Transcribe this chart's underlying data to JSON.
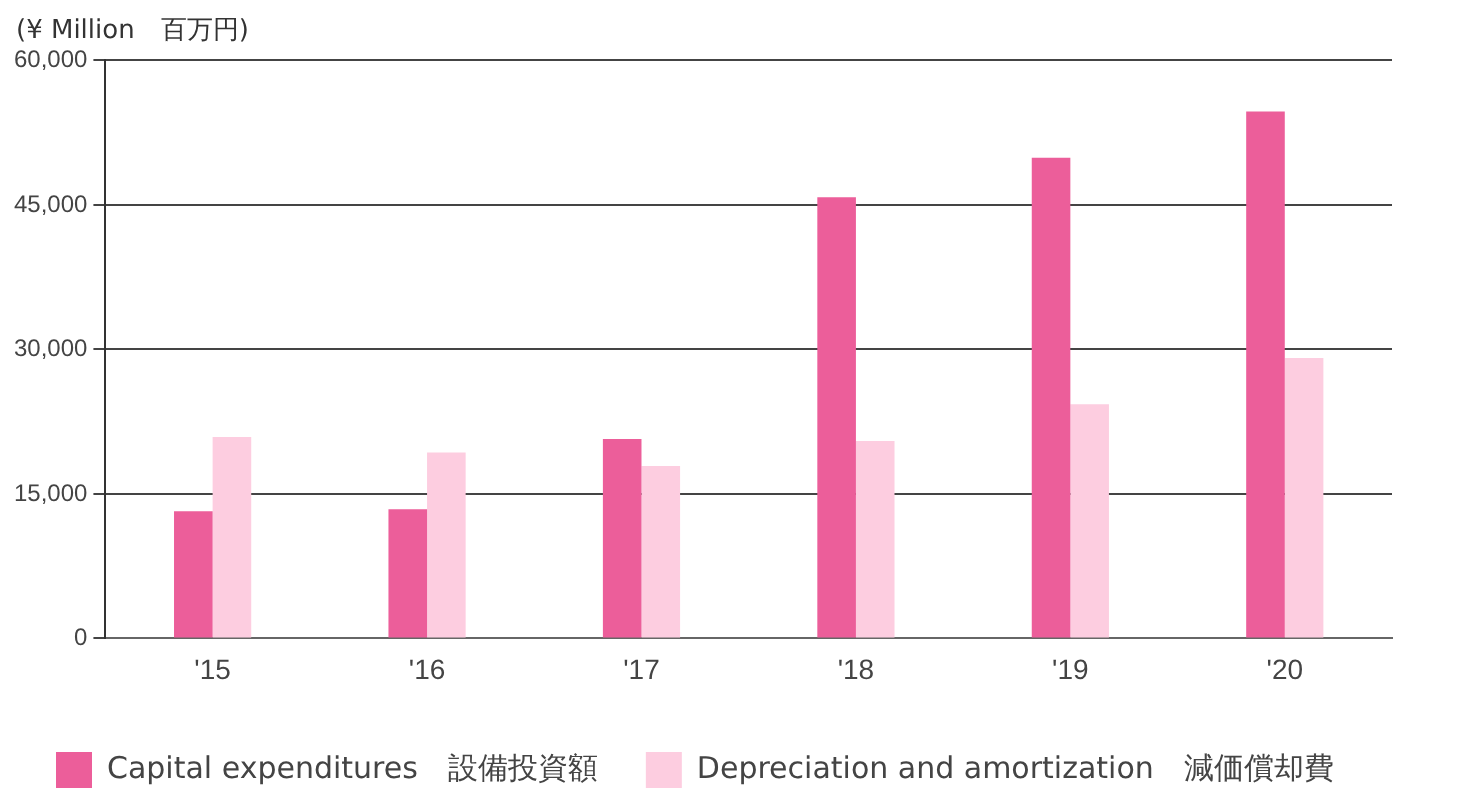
{
  "chart_data": {
    "type": "bar",
    "ylabel": "(¥ Million　百万円)",
    "categories": [
      "'15",
      "'16",
      "'17",
      "'18",
      "'19",
      "'20"
    ],
    "series": [
      {
        "name": "Capital expenditures　設備投資額",
        "color": "#ec5e9a",
        "values": [
          13200,
          13400,
          20700,
          45800,
          49900,
          54700
        ]
      },
      {
        "name": "Depreciation and amortization　減価償却費",
        "color": "#fdcde0",
        "values": [
          20900,
          19300,
          17900,
          20500,
          24300,
          29100
        ]
      }
    ],
    "ylim": [
      0,
      60000
    ],
    "yticks": [
      0,
      {
        "value": 15000,
        "label": "15,000"
      },
      {
        "value": 30000,
        "label": "30,000"
      },
      {
        "value": 45000,
        "label": "45,000"
      },
      {
        "value": 60000,
        "label": "60,000"
      }
    ],
    "grid": "y",
    "legend": "bottom"
  }
}
